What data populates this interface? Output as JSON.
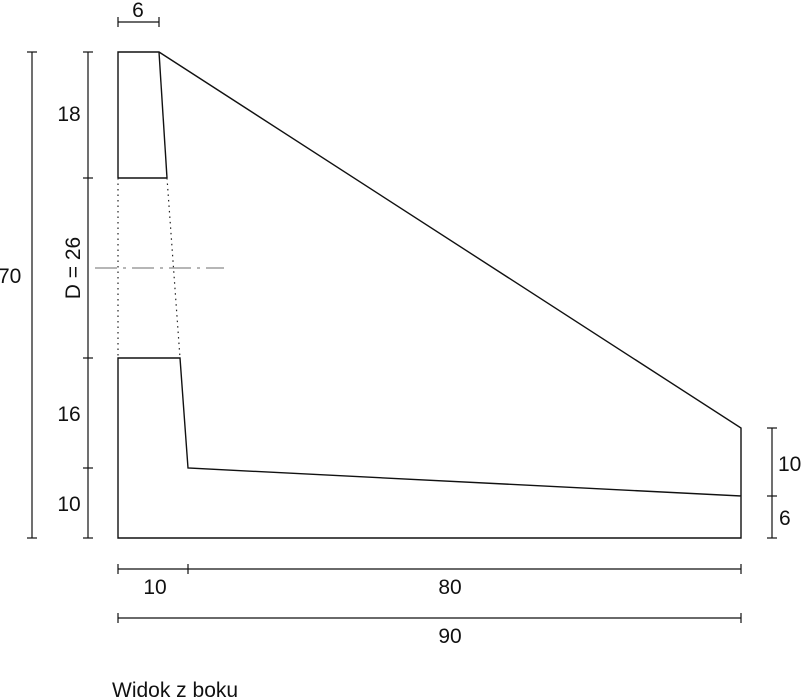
{
  "view_caption": "Widok z boku",
  "dimensions": {
    "top_width": "6",
    "top_height": "18",
    "hole_diameter": "D = 26",
    "total_height": "70",
    "lower_height": "16",
    "base_left_height": "10",
    "right_height_upper": "10",
    "right_height_lower": "6",
    "base_left_width": "10",
    "base_right_width": "80",
    "total_width": "90"
  }
}
